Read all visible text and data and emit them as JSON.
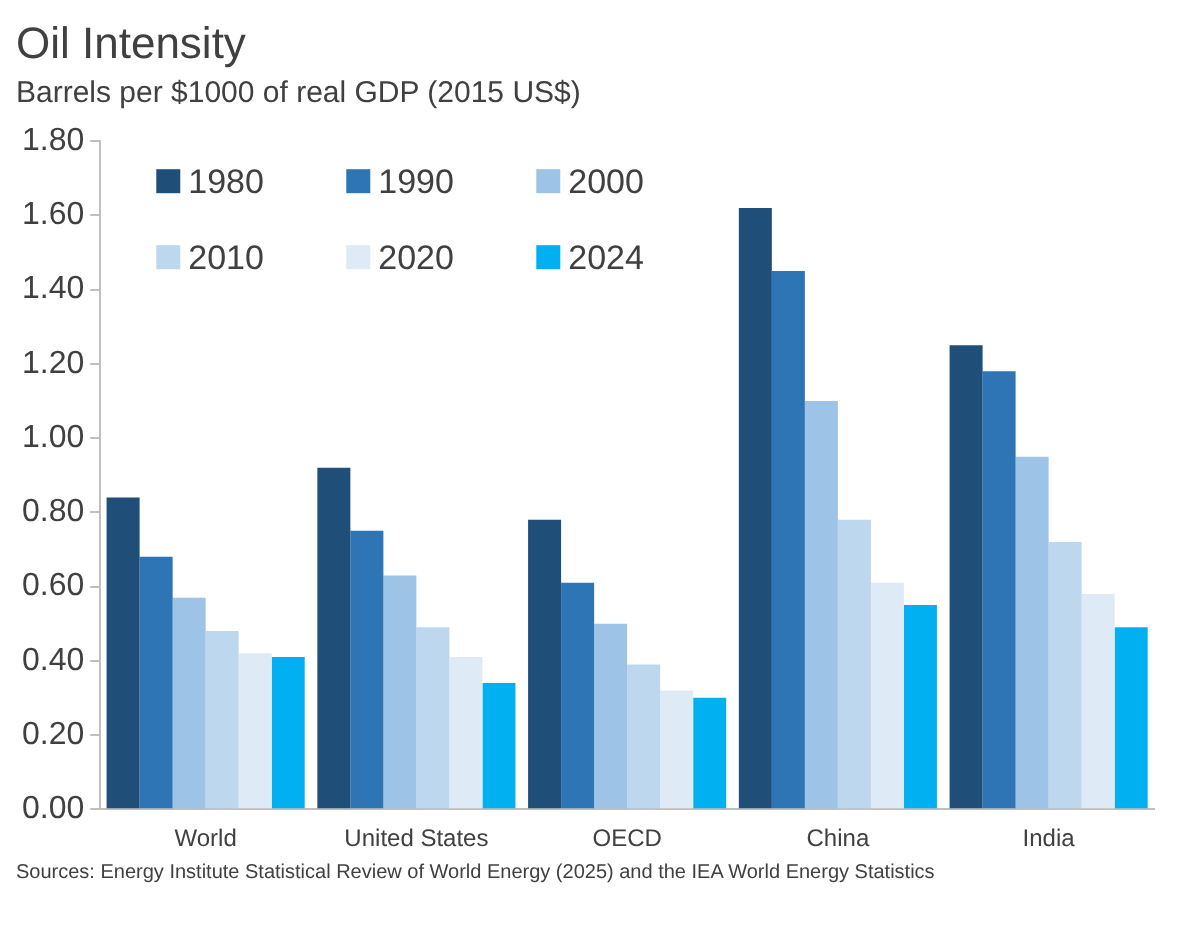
{
  "chart_data": {
    "type": "bar",
    "title": "Oil Intensity",
    "subtitle": "Barrels per $1000 of real GDP (2015 US$)",
    "categories": [
      "World",
      "United States",
      "OECD",
      "China",
      "India"
    ],
    "series": [
      {
        "name": "1980",
        "color": "#1f4e79",
        "values": [
          0.84,
          0.92,
          0.78,
          1.62,
          1.25
        ]
      },
      {
        "name": "1990",
        "color": "#2e75b6",
        "values": [
          0.68,
          0.75,
          0.61,
          1.45,
          1.18
        ]
      },
      {
        "name": "2000",
        "color": "#9dc3e6",
        "values": [
          0.57,
          0.63,
          0.5,
          1.1,
          0.95
        ]
      },
      {
        "name": "2010",
        "color": "#bdd7ee",
        "values": [
          0.48,
          0.49,
          0.39,
          0.78,
          0.72
        ]
      },
      {
        "name": "2020",
        "color": "#deebf7",
        "values": [
          0.42,
          0.41,
          0.32,
          0.61,
          0.58
        ]
      },
      {
        "name": "2024",
        "color": "#00b0f0",
        "values": [
          0.41,
          0.34,
          0.3,
          0.55,
          0.49
        ]
      }
    ],
    "ylim": [
      0,
      1.8
    ],
    "yticks": [
      {
        "value": 0,
        "label": "0.00"
      },
      {
        "value": 0.2,
        "label": "0.20"
      },
      {
        "value": 0.4,
        "label": "0.40"
      },
      {
        "value": 0.6,
        "label": "0.60"
      },
      {
        "value": 0.8,
        "label": "0.80"
      },
      {
        "value": 1,
        "label": "1.00"
      },
      {
        "value": 1.2,
        "label": "1.20"
      },
      {
        "value": 1.4,
        "label": "1.40"
      },
      {
        "value": 1.6,
        "label": "1.60"
      },
      {
        "value": 1.8,
        "label": "1.80"
      }
    ],
    "grid": false,
    "legend": "top left",
    "annotations": [
      "Sources: Energy Institute Statistical Review of World Energy (2025) and the IEA World Energy Statistics"
    ]
  }
}
